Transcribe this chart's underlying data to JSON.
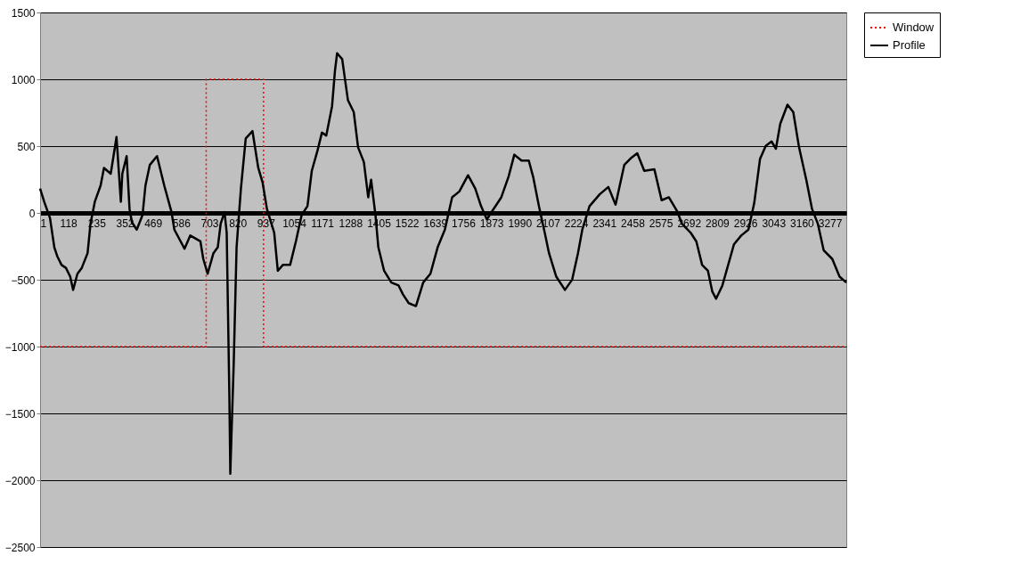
{
  "chart_data": {
    "type": "line",
    "xlim": [
      1,
      3345
    ],
    "xticks": [
      1,
      118,
      235,
      352,
      469,
      586,
      703,
      820,
      937,
      1054,
      1171,
      1288,
      1405,
      1522,
      1639,
      1756,
      1873,
      1990,
      2107,
      2224,
      2341,
      2458,
      2575,
      2692,
      2809,
      2926,
      3043,
      3160,
      3277
    ],
    "ylim": [
      -2500,
      1500
    ],
    "yticks": [
      -2500,
      -2000,
      -1500,
      -1000,
      -500,
      0,
      500,
      1000,
      1500
    ],
    "grid": "y",
    "legend": "right",
    "series": [
      {
        "name": "Window",
        "color": "#ff0000",
        "line_style": "dotted",
        "x": [
          1,
          690,
          690,
          928,
          928,
          3345
        ],
        "values": [
          -1000,
          -1000,
          1000,
          1000,
          -1000,
          -1000
        ]
      },
      {
        "name": "Profile",
        "color": "#000000",
        "line_style": "solid",
        "x": [
          1,
          18,
          42,
          60,
          72,
          90,
          108,
          126,
          138,
          156,
          174,
          198,
          210,
          228,
          252,
          266,
          294,
          318,
          336,
          342,
          360,
          372,
          382,
          402,
          426,
          438,
          456,
          486,
          516,
          546,
          558,
          600,
          624,
          666,
          678,
          696,
          720,
          738,
          750,
          766,
          775,
          786,
          790,
          794,
          804,
          816,
          834,
          854,
          882,
          906,
          924,
          942,
          972,
          987,
          1008,
          1038,
          1062,
          1086,
          1110,
          1128,
          1152,
          1170,
          1188,
          1212,
          1224,
          1233,
          1254,
          1278,
          1302,
          1320,
          1344,
          1362,
          1374,
          1392,
          1404,
          1428,
          1458,
          1488,
          1506,
          1530,
          1560,
          1590,
          1620,
          1650,
          1680,
          1710,
          1740,
          1776,
          1806,
          1830,
          1854,
          1878,
          1914,
          1944,
          1968,
          1998,
          2028,
          2046,
          2070,
          2094,
          2112,
          2142,
          2178,
          2208,
          2232,
          2250,
          2280,
          2322,
          2358,
          2388,
          2424,
          2454,
          2478,
          2507,
          2549,
          2579,
          2609,
          2645,
          2663,
          2699,
          2723,
          2747,
          2771,
          2789,
          2805,
          2831,
          2855,
          2879,
          2909,
          2939,
          2963,
          2987,
          3011,
          3035,
          3053,
          3071,
          3101,
          3125,
          3149,
          3179,
          3203,
          3227,
          3251,
          3287,
          3317,
          3345
        ],
        "values": [
          183,
          84,
          -37,
          -257,
          -323,
          -389,
          -411,
          -477,
          -576,
          -455,
          -411,
          -301,
          -81,
          84,
          205,
          337,
          293,
          568,
          84,
          293,
          425,
          29,
          -70,
          -125,
          -15,
          205,
          359,
          425,
          205,
          7,
          -125,
          -268,
          -169,
          -213,
          -345,
          -455,
          -301,
          -257,
          -81,
          7,
          -147,
          -1357,
          -1951,
          -1709,
          -1137,
          -257,
          183,
          557,
          612,
          337,
          227,
          29,
          -147,
          -433,
          -389,
          -389,
          -213,
          -15,
          51,
          315,
          469,
          601,
          579,
          799,
          1063,
          1195,
          1151,
          843,
          755,
          491,
          381,
          117,
          249,
          -15,
          -257,
          -433,
          -521,
          -543,
          -609,
          -675,
          -697,
          -521,
          -455,
          -257,
          -125,
          117,
          161,
          282,
          183,
          51,
          -48,
          18,
          117,
          271,
          436,
          392,
          392,
          271,
          51,
          -147,
          -301,
          -477,
          -576,
          -499,
          -301,
          -125,
          51,
          139,
          194,
          62,
          359,
          414,
          447,
          315,
          326,
          95,
          117,
          7,
          -81,
          -147,
          -213,
          -389,
          -433,
          -587,
          -642,
          -543,
          -389,
          -235,
          -169,
          -125,
          73,
          403,
          502,
          535,
          480,
          667,
          810,
          755,
          491,
          249,
          29,
          -81,
          -279,
          -345,
          -477,
          -521
        ]
      }
    ]
  }
}
